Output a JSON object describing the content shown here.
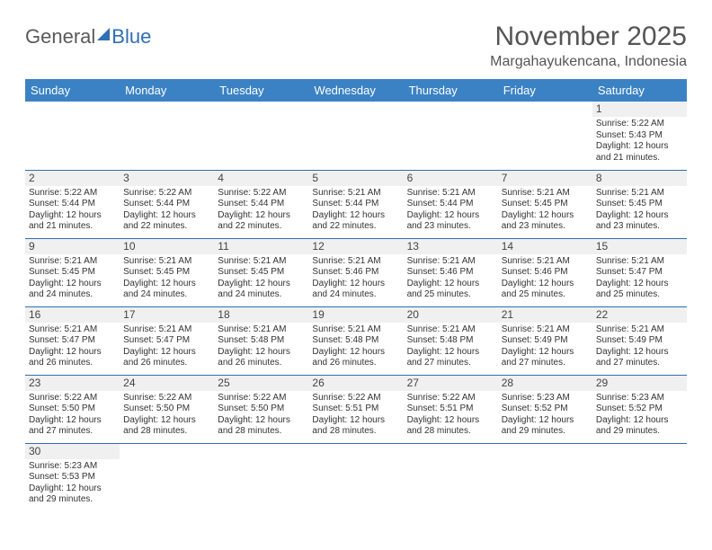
{
  "logo": {
    "part1": "General",
    "part2": "Blue"
  },
  "title": "November 2025",
  "location": "Margahayukencana, Indonesia",
  "colors": {
    "header_bg": "#3b82c4",
    "header_text": "#ffffff",
    "border": "#2f6fb3",
    "daynum_bg": "#f0f0f0",
    "text": "#333333",
    "title_text": "#555555"
  },
  "day_headers": [
    "Sunday",
    "Monday",
    "Tuesday",
    "Wednesday",
    "Thursday",
    "Friday",
    "Saturday"
  ],
  "weeks": [
    [
      {
        "n": "",
        "sr": "",
        "ss": "",
        "dl": ""
      },
      {
        "n": "",
        "sr": "",
        "ss": "",
        "dl": ""
      },
      {
        "n": "",
        "sr": "",
        "ss": "",
        "dl": ""
      },
      {
        "n": "",
        "sr": "",
        "ss": "",
        "dl": ""
      },
      {
        "n": "",
        "sr": "",
        "ss": "",
        "dl": ""
      },
      {
        "n": "",
        "sr": "",
        "ss": "",
        "dl": ""
      },
      {
        "n": "1",
        "sr": "Sunrise: 5:22 AM",
        "ss": "Sunset: 5:43 PM",
        "dl": "Daylight: 12 hours and 21 minutes."
      }
    ],
    [
      {
        "n": "2",
        "sr": "Sunrise: 5:22 AM",
        "ss": "Sunset: 5:44 PM",
        "dl": "Daylight: 12 hours and 21 minutes."
      },
      {
        "n": "3",
        "sr": "Sunrise: 5:22 AM",
        "ss": "Sunset: 5:44 PM",
        "dl": "Daylight: 12 hours and 22 minutes."
      },
      {
        "n": "4",
        "sr": "Sunrise: 5:22 AM",
        "ss": "Sunset: 5:44 PM",
        "dl": "Daylight: 12 hours and 22 minutes."
      },
      {
        "n": "5",
        "sr": "Sunrise: 5:21 AM",
        "ss": "Sunset: 5:44 PM",
        "dl": "Daylight: 12 hours and 22 minutes."
      },
      {
        "n": "6",
        "sr": "Sunrise: 5:21 AM",
        "ss": "Sunset: 5:44 PM",
        "dl": "Daylight: 12 hours and 23 minutes."
      },
      {
        "n": "7",
        "sr": "Sunrise: 5:21 AM",
        "ss": "Sunset: 5:45 PM",
        "dl": "Daylight: 12 hours and 23 minutes."
      },
      {
        "n": "8",
        "sr": "Sunrise: 5:21 AM",
        "ss": "Sunset: 5:45 PM",
        "dl": "Daylight: 12 hours and 23 minutes."
      }
    ],
    [
      {
        "n": "9",
        "sr": "Sunrise: 5:21 AM",
        "ss": "Sunset: 5:45 PM",
        "dl": "Daylight: 12 hours and 24 minutes."
      },
      {
        "n": "10",
        "sr": "Sunrise: 5:21 AM",
        "ss": "Sunset: 5:45 PM",
        "dl": "Daylight: 12 hours and 24 minutes."
      },
      {
        "n": "11",
        "sr": "Sunrise: 5:21 AM",
        "ss": "Sunset: 5:45 PM",
        "dl": "Daylight: 12 hours and 24 minutes."
      },
      {
        "n": "12",
        "sr": "Sunrise: 5:21 AM",
        "ss": "Sunset: 5:46 PM",
        "dl": "Daylight: 12 hours and 24 minutes."
      },
      {
        "n": "13",
        "sr": "Sunrise: 5:21 AM",
        "ss": "Sunset: 5:46 PM",
        "dl": "Daylight: 12 hours and 25 minutes."
      },
      {
        "n": "14",
        "sr": "Sunrise: 5:21 AM",
        "ss": "Sunset: 5:46 PM",
        "dl": "Daylight: 12 hours and 25 minutes."
      },
      {
        "n": "15",
        "sr": "Sunrise: 5:21 AM",
        "ss": "Sunset: 5:47 PM",
        "dl": "Daylight: 12 hours and 25 minutes."
      }
    ],
    [
      {
        "n": "16",
        "sr": "Sunrise: 5:21 AM",
        "ss": "Sunset: 5:47 PM",
        "dl": "Daylight: 12 hours and 26 minutes."
      },
      {
        "n": "17",
        "sr": "Sunrise: 5:21 AM",
        "ss": "Sunset: 5:47 PM",
        "dl": "Daylight: 12 hours and 26 minutes."
      },
      {
        "n": "18",
        "sr": "Sunrise: 5:21 AM",
        "ss": "Sunset: 5:48 PM",
        "dl": "Daylight: 12 hours and 26 minutes."
      },
      {
        "n": "19",
        "sr": "Sunrise: 5:21 AM",
        "ss": "Sunset: 5:48 PM",
        "dl": "Daylight: 12 hours and 26 minutes."
      },
      {
        "n": "20",
        "sr": "Sunrise: 5:21 AM",
        "ss": "Sunset: 5:48 PM",
        "dl": "Daylight: 12 hours and 27 minutes."
      },
      {
        "n": "21",
        "sr": "Sunrise: 5:21 AM",
        "ss": "Sunset: 5:49 PM",
        "dl": "Daylight: 12 hours and 27 minutes."
      },
      {
        "n": "22",
        "sr": "Sunrise: 5:21 AM",
        "ss": "Sunset: 5:49 PM",
        "dl": "Daylight: 12 hours and 27 minutes."
      }
    ],
    [
      {
        "n": "23",
        "sr": "Sunrise: 5:22 AM",
        "ss": "Sunset: 5:50 PM",
        "dl": "Daylight: 12 hours and 27 minutes."
      },
      {
        "n": "24",
        "sr": "Sunrise: 5:22 AM",
        "ss": "Sunset: 5:50 PM",
        "dl": "Daylight: 12 hours and 28 minutes."
      },
      {
        "n": "25",
        "sr": "Sunrise: 5:22 AM",
        "ss": "Sunset: 5:50 PM",
        "dl": "Daylight: 12 hours and 28 minutes."
      },
      {
        "n": "26",
        "sr": "Sunrise: 5:22 AM",
        "ss": "Sunset: 5:51 PM",
        "dl": "Daylight: 12 hours and 28 minutes."
      },
      {
        "n": "27",
        "sr": "Sunrise: 5:22 AM",
        "ss": "Sunset: 5:51 PM",
        "dl": "Daylight: 12 hours and 28 minutes."
      },
      {
        "n": "28",
        "sr": "Sunrise: 5:23 AM",
        "ss": "Sunset: 5:52 PM",
        "dl": "Daylight: 12 hours and 29 minutes."
      },
      {
        "n": "29",
        "sr": "Sunrise: 5:23 AM",
        "ss": "Sunset: 5:52 PM",
        "dl": "Daylight: 12 hours and 29 minutes."
      }
    ],
    [
      {
        "n": "30",
        "sr": "Sunrise: 5:23 AM",
        "ss": "Sunset: 5:53 PM",
        "dl": "Daylight: 12 hours and 29 minutes."
      },
      {
        "n": "",
        "sr": "",
        "ss": "",
        "dl": ""
      },
      {
        "n": "",
        "sr": "",
        "ss": "",
        "dl": ""
      },
      {
        "n": "",
        "sr": "",
        "ss": "",
        "dl": ""
      },
      {
        "n": "",
        "sr": "",
        "ss": "",
        "dl": ""
      },
      {
        "n": "",
        "sr": "",
        "ss": "",
        "dl": ""
      },
      {
        "n": "",
        "sr": "",
        "ss": "",
        "dl": ""
      }
    ]
  ]
}
